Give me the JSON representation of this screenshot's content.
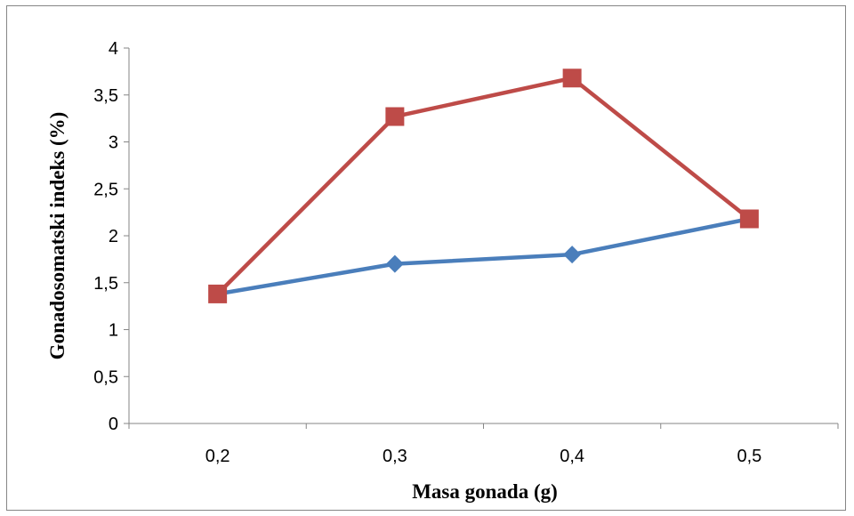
{
  "chart_data": {
    "type": "line",
    "title": "",
    "xlabel": "Masa gonada (g)",
    "ylabel": "Gonadosomatski indeks (%)",
    "categories": [
      "0,2",
      "0,3",
      "0,4",
      "0,5"
    ],
    "ylim": [
      0,
      4
    ],
    "yticks": [
      0,
      0.5,
      1,
      1.5,
      2,
      2.5,
      3,
      3.5,
      4
    ],
    "ytick_labels": [
      "0",
      "0,5",
      "1",
      "1,5",
      "2",
      "2,5",
      "3",
      "3,5",
      "4"
    ],
    "grid": false,
    "legend": "none",
    "series": [
      {
        "values": [
          1.38,
          1.7,
          1.8,
          2.18
        ],
        "color": "#4a7ebb",
        "marker": "diamond"
      },
      {
        "values": [
          1.38,
          3.27,
          3.68,
          2.18
        ],
        "color": "#be4b48",
        "marker": "square"
      }
    ]
  }
}
